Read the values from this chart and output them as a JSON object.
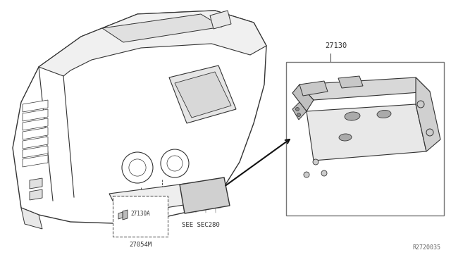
{
  "bg_color": "#ffffff",
  "line_color": "#333333",
  "label_27130": "27130",
  "label_27054M": "27054M",
  "label_27130A": "27130A",
  "label_see_sec280": "SEE SEC280",
  "label_r2720035": "R2720035",
  "figsize": [
    6.4,
    3.72
  ],
  "dpi": 100
}
